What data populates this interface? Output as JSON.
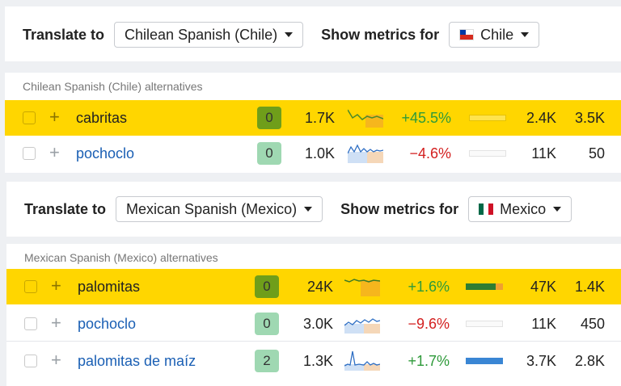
{
  "panel1": {
    "translate_label": "Translate to",
    "language": "Chilean Spanish (Chile)",
    "metrics_label": "Show metrics for",
    "country": "Chile",
    "section_title": "Chilean Spanish (Chile) alternatives",
    "rows": [
      {
        "keyword": "cabritas",
        "kd": "0",
        "volume": "1.7K",
        "change": "+45.5%",
        "traffic": "2.4K",
        "clicks": "3.5K",
        "highlighted": true,
        "bar_fill": 0.0
      },
      {
        "keyword": "pochoclo",
        "kd": "0",
        "volume": "1.0K",
        "change": "−4.6%",
        "traffic": "11K",
        "clicks": "50",
        "highlighted": false,
        "bar_fill": 0.0
      }
    ]
  },
  "panel2": {
    "translate_label": "Translate to",
    "language": "Mexican Spanish (Mexico)",
    "metrics_label": "Show metrics for",
    "country": "Mexico",
    "section_title": "Mexican Spanish (Mexico) alternatives",
    "rows": [
      {
        "keyword": "palomitas",
        "kd": "0",
        "volume": "24K",
        "change": "+1.6%",
        "traffic": "47K",
        "clicks": "1.4K",
        "highlighted": true,
        "bar_fill": 0.8
      },
      {
        "keyword": "pochoclo",
        "kd": "0",
        "volume": "3.0K",
        "change": "−9.6%",
        "traffic": "11K",
        "clicks": "450",
        "highlighted": false,
        "bar_fill": 0.0
      },
      {
        "keyword": "palomitas de maíz",
        "kd": "2",
        "volume": "1.3K",
        "change": "+1.7%",
        "traffic": "3.7K",
        "clicks": "2.8K",
        "highlighted": false,
        "bar_fill": 1.0
      }
    ]
  },
  "colors": {
    "highlight": "#ffd600",
    "positive": "#2e9a3a",
    "negative": "#d32020",
    "link": "#1a5fb4",
    "kd_green": "#9fd8b2",
    "kd_dark": "#6f9e1a"
  },
  "icons": [
    "plus-icon",
    "caret-down-icon",
    "chile-flag-icon",
    "mexico-flag-icon",
    "checkbox-icon",
    "sparkline-icon"
  ]
}
